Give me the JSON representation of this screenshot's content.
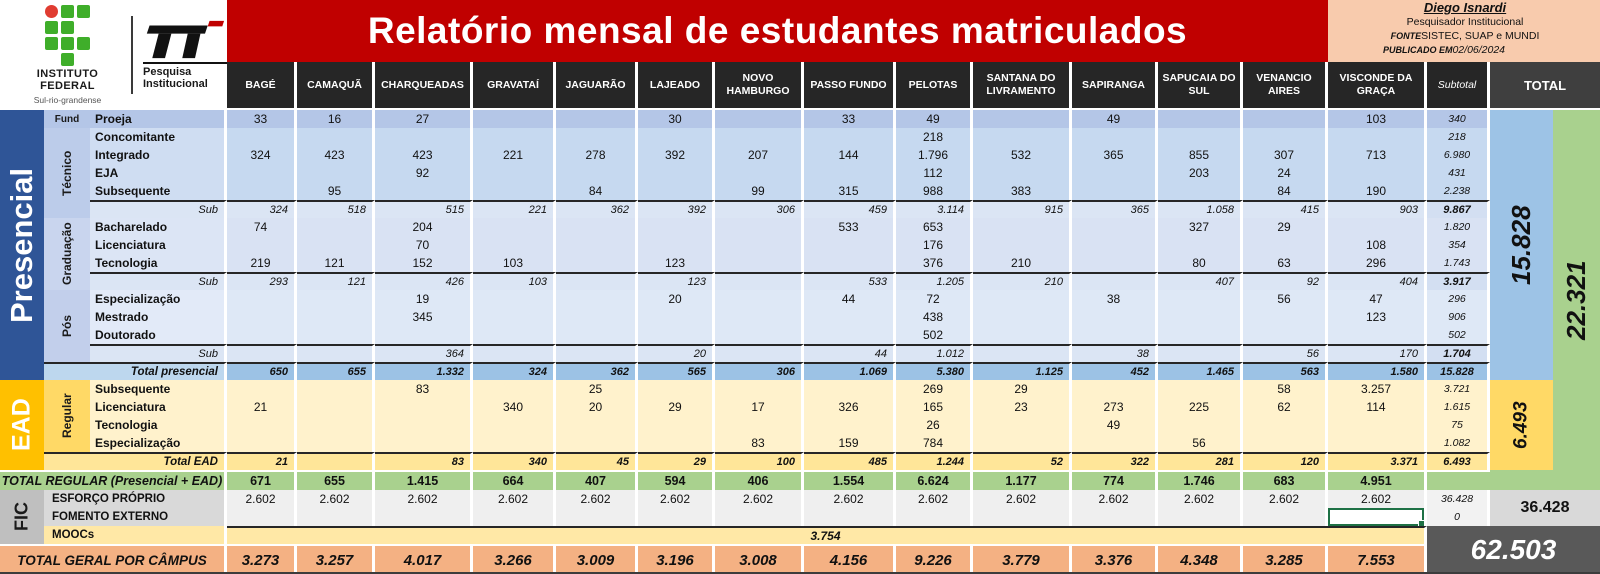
{
  "title": "Relatório mensal de estudantes matriculados",
  "logos": {
    "institute_name": "INSTITUTO FEDERAL",
    "institute_subtitle": "Sul-rio-grandense",
    "pi_label_line1": "Pesquisa",
    "pi_label_line2": "Institucional"
  },
  "info": {
    "author": "Diego Isnardi",
    "role": "Pesquisador Institucional",
    "fonte_label": "FONTE",
    "fonte_value": "SISTEC, SUAP e MUNDI",
    "published_label": "PUBLICADO EM",
    "published_value": "02/06/2024"
  },
  "columns": [
    "BAGÉ",
    "CAMAQUÃ",
    "CHARQUEADAS",
    "GRAVATAÍ",
    "JAGUARÃO",
    "LAJEADO",
    "NOVO HAMBURGO",
    "PASSO FUNDO",
    "PELOTAS",
    "SANTANA DO LIVRAMENTO",
    "SAPIRANGA",
    "SAPUCAIA DO SUL",
    "VENANCIO AIRES",
    "VISCONDE DA GRAÇA"
  ],
  "subtotal_header": "Subtotal",
  "total_header": "TOTAL",
  "groups": {
    "presencial": "Presencial",
    "ead": "EAD",
    "fic": "FIC"
  },
  "subgroups": {
    "fund": "Fund",
    "tecnico": "Técnico",
    "graduacao": "Graduação",
    "pos": "Pós",
    "regular": "Regular"
  },
  "totals": {
    "presencial": "15.828",
    "ead": "6.493",
    "regular": "22.321",
    "fic": "36.428",
    "grand": "62.503"
  },
  "active_cell": {
    "row": "fomento-externo",
    "column": "VISCONDE DA GRAÇA"
  },
  "colors": {
    "banner_red": "#C00000",
    "presencial_blue": "#2F5597",
    "ead_gold": "#FFC000",
    "regular_green": "#A9D18E",
    "grand_orange": "#F4B183",
    "info_peach": "#F8CBAD",
    "dark_total": "#595959"
  },
  "chart_data": {
    "type": "table",
    "note": "Monthly enrollment report by campus"
  },
  "rows": [
    {
      "id": "proeja",
      "label": "Proeja",
      "group": "fund",
      "kind": "data",
      "values": [
        "33",
        "16",
        "27",
        "",
        "",
        "30",
        "",
        "33",
        "49",
        "",
        "49",
        "",
        "",
        "103"
      ],
      "subtotal": "340"
    },
    {
      "id": "concomitante",
      "label": "Concomitante",
      "group": "tecnico",
      "kind": "data",
      "values": [
        "",
        "",
        "",
        "",
        "",
        "",
        "",
        "",
        "218",
        "",
        "",
        "",
        "",
        ""
      ],
      "subtotal": "218"
    },
    {
      "id": "integrado",
      "label": "Integrado",
      "group": "tecnico",
      "kind": "data",
      "values": [
        "324",
        "423",
        "423",
        "221",
        "278",
        "392",
        "207",
        "144",
        "1.796",
        "532",
        "365",
        "855",
        "307",
        "713"
      ],
      "subtotal": "6.980"
    },
    {
      "id": "eja",
      "label": "EJA",
      "group": "tecnico",
      "kind": "data",
      "values": [
        "",
        "",
        "92",
        "",
        "",
        "",
        "",
        "",
        "112",
        "",
        "",
        "203",
        "24",
        ""
      ],
      "subtotal": "431"
    },
    {
      "id": "subsequente-tecnico",
      "label": "Subsequente",
      "group": "tecnico",
      "kind": "data",
      "values": [
        "",
        "95",
        "",
        "",
        "84",
        "",
        "99",
        "315",
        "988",
        "383",
        "",
        "",
        "84",
        "190"
      ],
      "subtotal": "2.238"
    },
    {
      "id": "sub-tecnico",
      "label": "Sub",
      "kind": "sub",
      "values": [
        "324",
        "518",
        "515",
        "221",
        "362",
        "392",
        "306",
        "459",
        "3.114",
        "915",
        "365",
        "1.058",
        "415",
        "903"
      ],
      "subtotal": "9.867"
    },
    {
      "id": "bacharelado",
      "label": "Bacharelado",
      "group": "graduacao",
      "kind": "data",
      "values": [
        "74",
        "",
        "204",
        "",
        "",
        "",
        "",
        "533",
        "653",
        "",
        "",
        "327",
        "29",
        ""
      ],
      "subtotal": "1.820"
    },
    {
      "id": "licenciatura",
      "label": "Licenciatura",
      "group": "graduacao",
      "kind": "data",
      "values": [
        "",
        "",
        "70",
        "",
        "",
        "",
        "",
        "",
        "176",
        "",
        "",
        "",
        "",
        "108"
      ],
      "subtotal": "354"
    },
    {
      "id": "tecnologia",
      "label": "Tecnologia",
      "group": "graduacao",
      "kind": "data",
      "values": [
        "219",
        "121",
        "152",
        "103",
        "",
        "123",
        "",
        "",
        "376",
        "210",
        "",
        "80",
        "63",
        "296"
      ],
      "subtotal": "1.743"
    },
    {
      "id": "sub-graduacao",
      "label": "Sub",
      "kind": "sub",
      "values": [
        "293",
        "121",
        "426",
        "103",
        "",
        "123",
        "",
        "533",
        "1.205",
        "210",
        "",
        "407",
        "92",
        "404"
      ],
      "subtotal": "3.917"
    },
    {
      "id": "especializacao",
      "label": "Especialização",
      "group": "pos",
      "kind": "data",
      "values": [
        "",
        "",
        "19",
        "",
        "",
        "20",
        "",
        "44",
        "72",
        "",
        "38",
        "",
        "56",
        "47"
      ],
      "subtotal": "296"
    },
    {
      "id": "mestrado",
      "label": "Mestrado",
      "group": "pos",
      "kind": "data",
      "values": [
        "",
        "",
        "345",
        "",
        "",
        "",
        "",
        "",
        "438",
        "",
        "",
        "",
        "",
        "123"
      ],
      "subtotal": "906"
    },
    {
      "id": "doutorado",
      "label": "Doutorado",
      "group": "pos",
      "kind": "data",
      "values": [
        "",
        "",
        "",
        "",
        "",
        "",
        "",
        "",
        "502",
        "",
        "",
        "",
        "",
        ""
      ],
      "subtotal": "502"
    },
    {
      "id": "sub-pos",
      "label": "Sub",
      "kind": "sub",
      "values": [
        "",
        "",
        "364",
        "",
        "",
        "20",
        "",
        "44",
        "1.012",
        "",
        "38",
        "",
        "56",
        "170"
      ],
      "subtotal": "1.704"
    },
    {
      "id": "total-presencial",
      "label": "Total presencial",
      "kind": "total-presencial",
      "values": [
        "650",
        "655",
        "1.332",
        "324",
        "362",
        "565",
        "306",
        "1.069",
        "5.380",
        "1.125",
        "452",
        "1.465",
        "563",
        "1.580"
      ],
      "subtotal": "15.828"
    },
    {
      "id": "subsequente-ead",
      "label": "Subsequente",
      "group": "regular",
      "kind": "ead",
      "values": [
        "",
        "",
        "83",
        "",
        "25",
        "",
        "",
        "",
        "269",
        "29",
        "",
        "",
        "58",
        "3.257"
      ],
      "subtotal": "3.721"
    },
    {
      "id": "licenciatura-ead",
      "label": "Licenciatura",
      "group": "regular",
      "kind": "ead",
      "values": [
        "21",
        "",
        "",
        "340",
        "20",
        "29",
        "17",
        "326",
        "165",
        "23",
        "273",
        "225",
        "62",
        "114"
      ],
      "subtotal": "1.615"
    },
    {
      "id": "tecnologia-ead",
      "label": "Tecnologia",
      "group": "regular",
      "kind": "ead",
      "values": [
        "",
        "",
        "",
        "",
        "",
        "",
        "",
        "",
        "26",
        "",
        "49",
        "",
        "",
        ""
      ],
      "subtotal": "75"
    },
    {
      "id": "especializacao-ead",
      "label": "Especialização",
      "group": "regular",
      "kind": "ead",
      "values": [
        "",
        "",
        "",
        "",
        "",
        "",
        "83",
        "159",
        "784",
        "",
        "",
        "56",
        "",
        ""
      ],
      "subtotal": "1.082"
    },
    {
      "id": "total-ead",
      "label": "Total EAD",
      "kind": "total-ead",
      "values": [
        "21",
        "",
        "83",
        "340",
        "45",
        "29",
        "100",
        "485",
        "1.244",
        "52",
        "322",
        "281",
        "120",
        "3.371"
      ],
      "subtotal": "6.493"
    },
    {
      "id": "total-regular",
      "label": "TOTAL REGULAR (Presencial + EAD)",
      "kind": "regular-total",
      "values": [
        "671",
        "655",
        "1.415",
        "664",
        "407",
        "594",
        "406",
        "1.554",
        "6.624",
        "1.177",
        "774",
        "1.746",
        "683",
        "4.951"
      ],
      "subtotal": ""
    },
    {
      "id": "esforco-proprio",
      "label": "ESFORÇO PRÓPRIO",
      "kind": "fic",
      "values": [
        "2.602",
        "2.602",
        "2.602",
        "2.602",
        "2.602",
        "2.602",
        "2.602",
        "2.602",
        "2.602",
        "2.602",
        "2.602",
        "2.602",
        "2.602",
        "2.602"
      ],
      "subtotal": "36.428"
    },
    {
      "id": "fomento-externo",
      "label": "FOMENTO EXTERNO",
      "kind": "fic",
      "values": [
        "",
        "",
        "",
        "",
        "",
        "",
        "",
        "",
        "",
        "",
        "",
        "",
        "",
        ""
      ],
      "subtotal": "0"
    },
    {
      "id": "moocs",
      "label": "MOOCs",
      "kind": "moocs",
      "merged_value": "3.754"
    },
    {
      "id": "total-geral",
      "label": "TOTAL GERAL POR CÂMPUS",
      "kind": "grand",
      "values": [
        "3.273",
        "3.257",
        "4.017",
        "3.266",
        "3.009",
        "3.196",
        "3.008",
        "4.156",
        "9.226",
        "3.779",
        "3.376",
        "4.348",
        "3.285",
        "7.553"
      ]
    }
  ]
}
